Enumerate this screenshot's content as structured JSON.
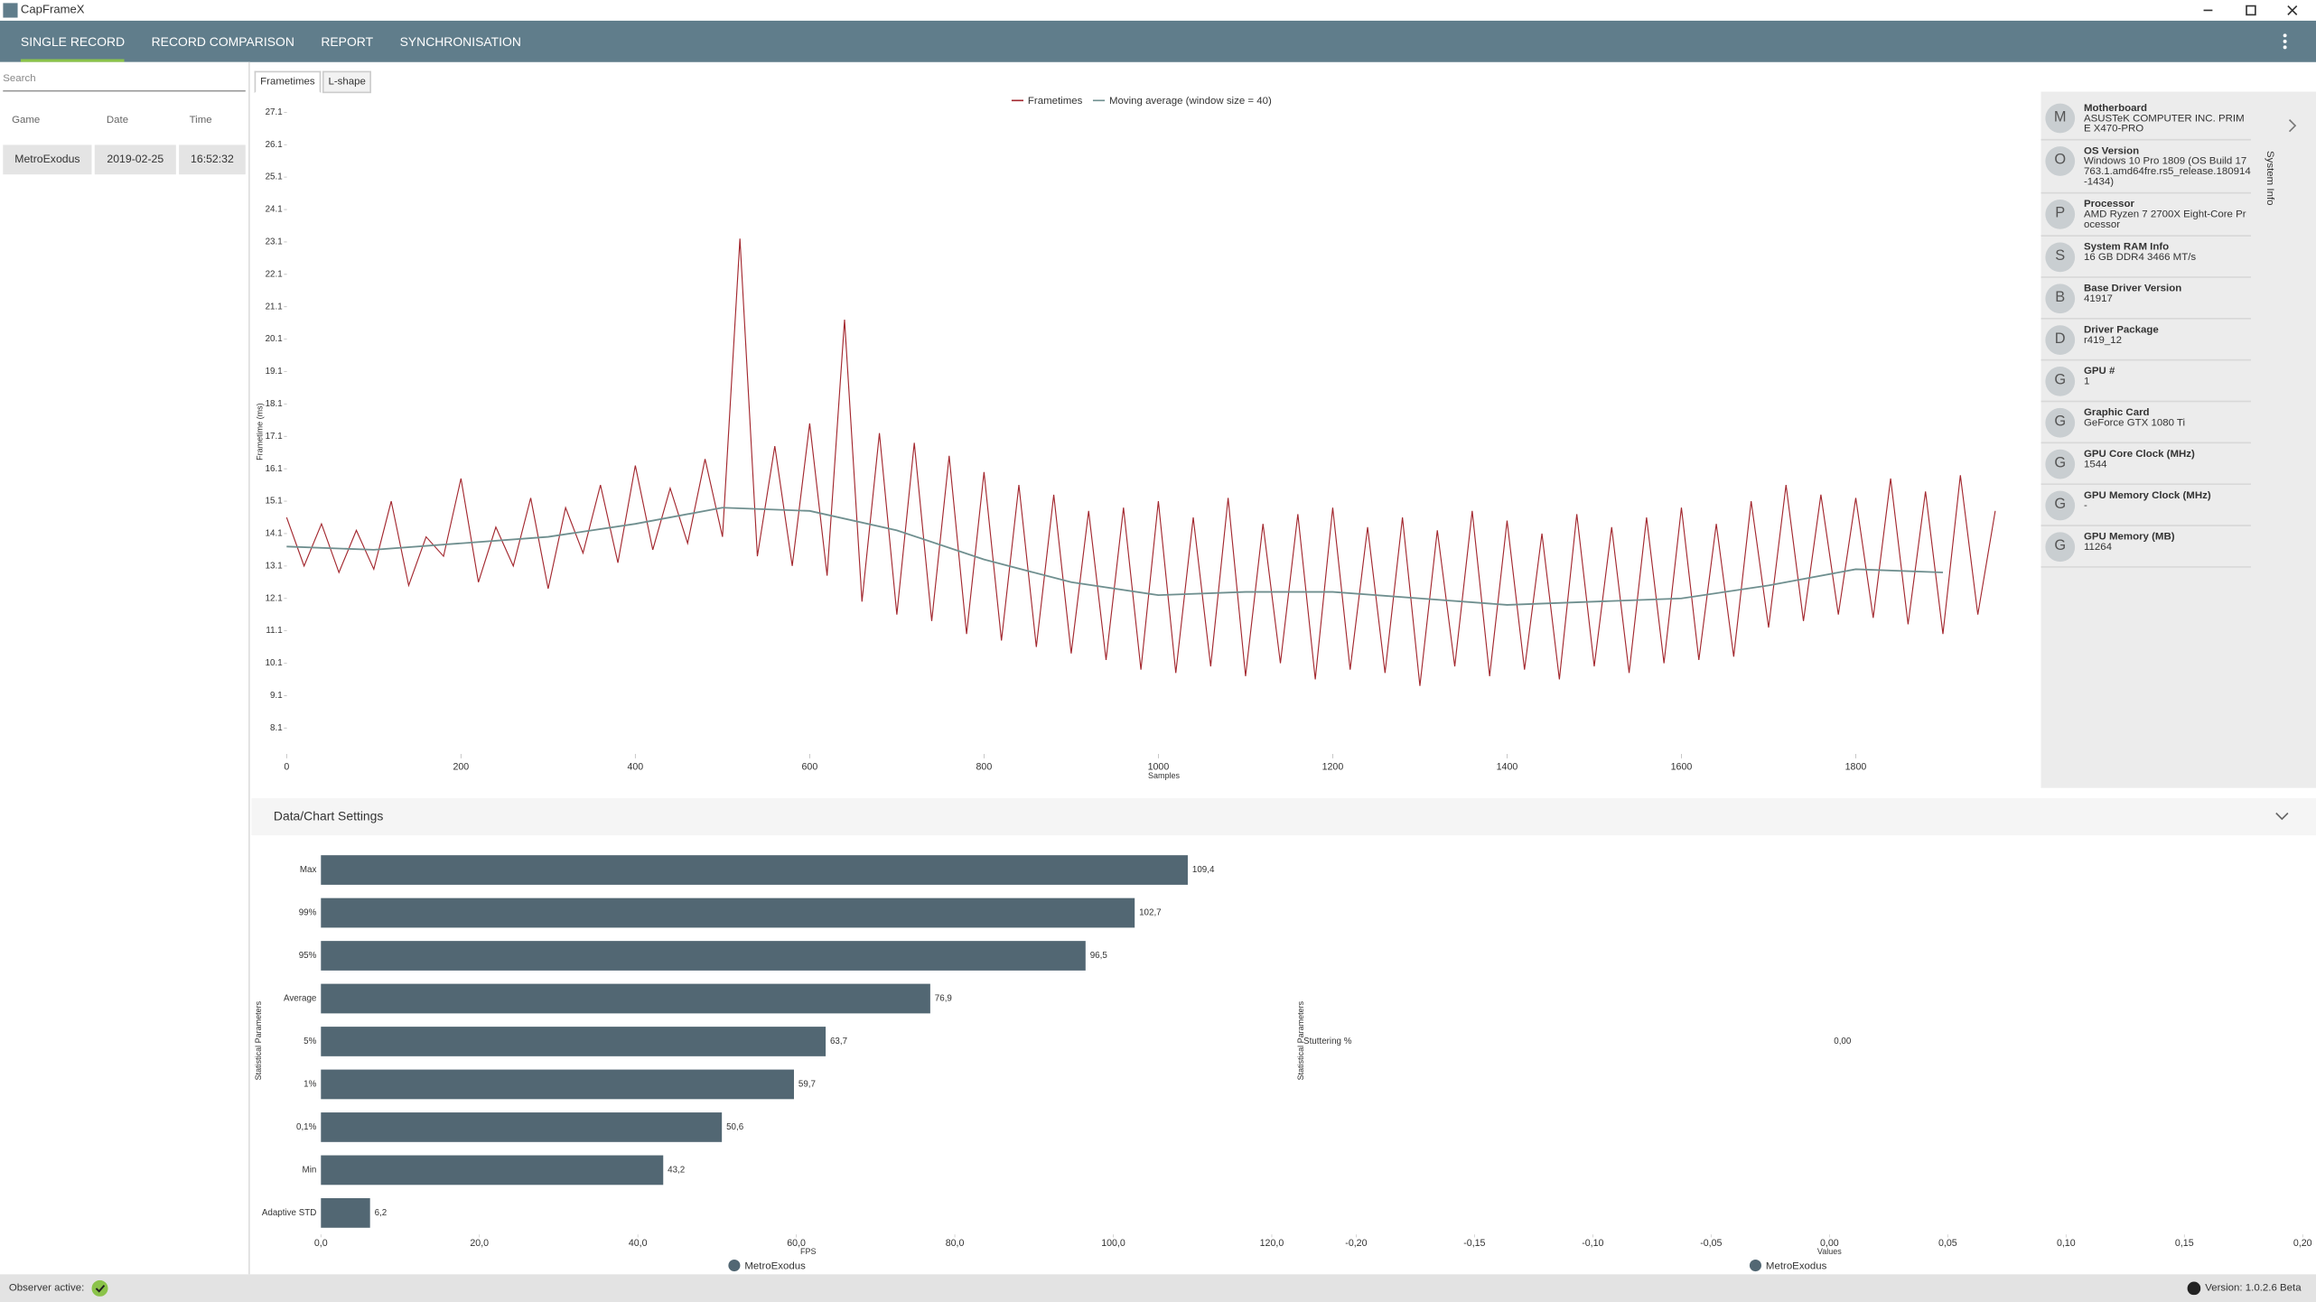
{
  "window": {
    "title": "CapFrameX"
  },
  "nav": [
    "SINGLE RECORD",
    "RECORD COMPARISON",
    "REPORT",
    "SYNCHRONISATION"
  ],
  "sidebar": {
    "search_placeholder": "Search",
    "columns": [
      "Game",
      "Date",
      "Time"
    ],
    "rows": [
      [
        "MetroExodus",
        "2019-02-25",
        "16:52:32"
      ]
    ]
  },
  "tabs": [
    "Frametimes",
    "L-shape"
  ],
  "chart_data": [
    {
      "type": "line",
      "xlabel": "Samples",
      "ylabel": "Frametime (ms)",
      "xlim": [
        -37,
        2009
      ],
      "ylim": [
        7.3,
        27.6
      ],
      "xticks": [
        0,
        200,
        400,
        600,
        800,
        1000,
        1200,
        1400,
        1600,
        1800
      ],
      "yticks": [
        8.1,
        9.1,
        10.1,
        11.1,
        12.1,
        13.1,
        14.1,
        15.1,
        16.1,
        17.1,
        18.1,
        19.1,
        20.1,
        21.1,
        22.1,
        23.1,
        24.1,
        25.1,
        26.1,
        27.1
      ],
      "series": [
        {
          "name": "Frametimes",
          "color": "#a3282f",
          "x": [
            0,
            20,
            40,
            60,
            80,
            100,
            120,
            140,
            160,
            180,
            200,
            220,
            240,
            260,
            280,
            300,
            320,
            340,
            360,
            380,
            400,
            420,
            440,
            460,
            480,
            500,
            520,
            540,
            560,
            580,
            600,
            620,
            640,
            660,
            680,
            700,
            720,
            740,
            760,
            780,
            800,
            820,
            840,
            860,
            880,
            900,
            920,
            940,
            960,
            980,
            1000,
            1020,
            1040,
            1060,
            1080,
            1100,
            1120,
            1140,
            1160,
            1180,
            1200,
            1220,
            1240,
            1260,
            1280,
            1300,
            1320,
            1340,
            1360,
            1380,
            1400,
            1420,
            1440,
            1460,
            1480,
            1500,
            1520,
            1540,
            1560,
            1580,
            1600,
            1620,
            1640,
            1660,
            1680,
            1700,
            1720,
            1740,
            1760,
            1780,
            1800,
            1820,
            1840,
            1860,
            1880,
            1900,
            1920,
            1940,
            1960
          ],
          "values": [
            14.6,
            13.1,
            14.4,
            12.9,
            14.2,
            13.0,
            15.1,
            12.5,
            14.0,
            13.4,
            15.8,
            12.6,
            14.3,
            13.1,
            15.2,
            12.4,
            14.9,
            13.5,
            15.6,
            13.2,
            16.2,
            13.6,
            15.5,
            13.8,
            16.4,
            14.0,
            23.2,
            13.4,
            16.8,
            13.1,
            17.5,
            12.8,
            20.7,
            12.0,
            17.2,
            11.6,
            16.9,
            11.4,
            16.5,
            11.0,
            16.0,
            10.8,
            15.6,
            10.6,
            15.3,
            10.4,
            14.8,
            10.2,
            14.9,
            9.9,
            15.1,
            9.8,
            14.6,
            10.0,
            15.2,
            9.7,
            14.4,
            10.1,
            14.7,
            9.6,
            14.9,
            9.9,
            14.3,
            9.8,
            14.6,
            9.4,
            14.2,
            10.0,
            14.8,
            9.7,
            14.5,
            9.9,
            14.1,
            9.6,
            14.7,
            10.0,
            14.3,
            9.8,
            14.6,
            10.1,
            14.9,
            10.2,
            14.4,
            10.3,
            15.1,
            11.2,
            15.6,
            11.4,
            15.3,
            11.6,
            15.2,
            11.5,
            15.8,
            11.3,
            15.4,
            11.0,
            15.9,
            11.6,
            14.8
          ]
        },
        {
          "name": "Moving average (window size = 40)",
          "color": "#6f8f8f",
          "x": [
            0,
            100,
            200,
            300,
            400,
            500,
            600,
            700,
            800,
            900,
            1000,
            1100,
            1200,
            1300,
            1400,
            1500,
            1600,
            1700,
            1800,
            1900
          ],
          "values": [
            13.7,
            13.6,
            13.8,
            14.0,
            14.4,
            14.9,
            14.8,
            14.2,
            13.3,
            12.6,
            12.2,
            12.3,
            12.3,
            12.1,
            11.9,
            12.0,
            12.1,
            12.5,
            13.0,
            12.9
          ]
        }
      ]
    },
    {
      "type": "bar",
      "orientation": "horizontal",
      "color": "#526773",
      "xlabel": "FPS",
      "ylabel": "Statistical Parameters",
      "legend": "MetroExodus",
      "categories": [
        "Max",
        "99%",
        "95%",
        "Average",
        "5%",
        "1%",
        "0,1%",
        "Min",
        "Adaptive STD"
      ],
      "values": [
        109.4,
        102.7,
        96.5,
        76.9,
        63.7,
        59.7,
        50.6,
        43.2,
        6.2
      ],
      "value_labels": [
        "109,4",
        "102,7",
        "96,5",
        "76,9",
        "63,7",
        "59,7",
        "50,6",
        "43,2",
        "6,2"
      ],
      "xlim": [
        0,
        123
      ],
      "xticks": [
        {
          "value": 0,
          "label": "0,0"
        },
        {
          "value": 20,
          "label": "20,0"
        },
        {
          "value": 40,
          "label": "40,0"
        },
        {
          "value": 60,
          "label": "60,0"
        },
        {
          "value": 80,
          "label": "80,0"
        },
        {
          "value": 100,
          "label": "100,0"
        },
        {
          "value": 120,
          "label": "120,0"
        }
      ]
    },
    {
      "type": "bar",
      "orientation": "horizontal",
      "color": "#526773",
      "xlabel": "Values",
      "ylabel": "Statistical Parameters",
      "legend": "MetroExodus",
      "categories": [
        "Stuttering %"
      ],
      "values": [
        0
      ],
      "value_labels": [
        "0,00"
      ],
      "xlim": [
        -0.2,
        0.2
      ],
      "xticks": [
        {
          "value": -0.2,
          "label": "-0,20"
        },
        {
          "value": -0.15,
          "label": "-0,15"
        },
        {
          "value": -0.1,
          "label": "-0,10"
        },
        {
          "value": -0.05,
          "label": "-0,05"
        },
        {
          "value": 0,
          "label": "0,00"
        },
        {
          "value": 0.05,
          "label": "0,05"
        },
        {
          "value": 0.1,
          "label": "0,10"
        },
        {
          "value": 0.15,
          "label": "0,15"
        },
        {
          "value": 0.2,
          "label": "0,20"
        }
      ]
    }
  ],
  "system_info": {
    "label": "System Info",
    "items": [
      {
        "icon": "M",
        "title": "Motherboard",
        "value": "ASUSTeK COMPUTER INC. PRIME X470-PRO"
      },
      {
        "icon": "O",
        "title": "OS Version",
        "value": "Windows 10 Pro 1809 (OS Build 17763.1.amd64fre.rs5_release.180914-1434)"
      },
      {
        "icon": "P",
        "title": "Processor",
        "value": "AMD Ryzen 7 2700X Eight-Core Processor"
      },
      {
        "icon": "S",
        "title": "System RAM Info",
        "value": "16 GB DDR4 3466 MT/s"
      },
      {
        "icon": "B",
        "title": "Base Driver Version",
        "value": "41917"
      },
      {
        "icon": "D",
        "title": "Driver Package",
        "value": "r419_12"
      },
      {
        "icon": "G",
        "title": "GPU #",
        "value": "1"
      },
      {
        "icon": "G",
        "title": "Graphic Card",
        "value": "GeForce GTX 1080 Ti"
      },
      {
        "icon": "G",
        "title": "GPU Core Clock (MHz)",
        "value": "1544"
      },
      {
        "icon": "G",
        "title": "GPU Memory Clock (MHz)",
        "value": "-"
      },
      {
        "icon": "G",
        "title": "GPU Memory (MB)",
        "value": "11264"
      }
    ]
  },
  "settings": {
    "title": "Data/Chart Settings"
  },
  "status": {
    "observer": "Observer active:",
    "version": "Version: 1.0.2.6 Beta"
  }
}
